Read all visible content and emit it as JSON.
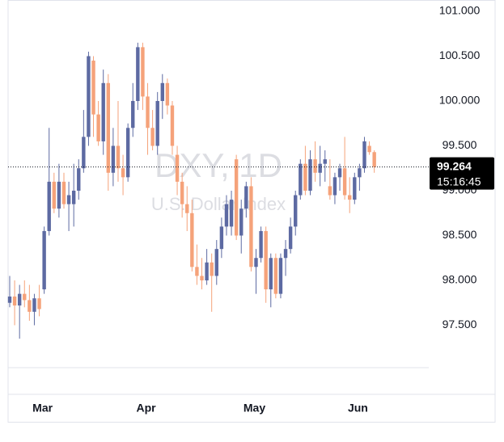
{
  "chart_data": {
    "type": "candlestick",
    "title": "DXY, 1D",
    "subtitle": "U.S. Dollar Index",
    "categories": [
      null,
      null,
      null,
      null,
      null,
      null,
      null,
      "Mar",
      null,
      null,
      null,
      null,
      null,
      null,
      null,
      null,
      null,
      null,
      null,
      null,
      null,
      null,
      null,
      null,
      null,
      null,
      null,
      null,
      "Apr",
      null,
      null,
      null,
      null,
      null,
      null,
      null,
      null,
      null,
      null,
      null,
      null,
      null,
      null,
      null,
      null,
      null,
      null,
      null,
      null,
      null,
      "May",
      null,
      null,
      null,
      null,
      null,
      null,
      null,
      null,
      null,
      null,
      null,
      null,
      null,
      null,
      null,
      null,
      null,
      null,
      null,
      null,
      "Jun",
      null,
      null,
      null
    ],
    "open": [
      97.75,
      97.82,
      97.72,
      97.85,
      97.78,
      97.65,
      97.8,
      97.9,
      98.55,
      99.1,
      98.8,
      99.1,
      98.85,
      98.85,
      99.0,
      99.25,
      99.6,
      100.45,
      99.85,
      99.55,
      100.2,
      99.2,
      99.5,
      99.25,
      99.15,
      99.7,
      100.0,
      100.6,
      100.05,
      99.7,
      99.5,
      100.0,
      100.2,
      99.95,
      99.4,
      99.1,
      98.85,
      98.75,
      98.15,
      98.05,
      98.0,
      98.2,
      98.05,
      98.35,
      98.6,
      98.6,
      99.35,
      98.5,
      98.8,
      99.05,
      98.15,
      98.25,
      98.55,
      97.9,
      98.25,
      97.85,
      98.25,
      98.35,
      98.6,
      98.95,
      99.3,
      99.0,
      99.35,
      99.2,
      99.3,
      99.05,
      98.95,
      99.15,
      99.25,
      98.95,
      98.9,
      99.15,
      99.25,
      99.5,
      99.43
    ],
    "high": [
      98.05,
      98.0,
      97.95,
      98.0,
      97.95,
      97.85,
      97.95,
      98.6,
      99.7,
      99.2,
      99.3,
      99.2,
      99.1,
      99.3,
      99.35,
      99.9,
      100.55,
      100.5,
      100.0,
      100.35,
      100.3,
      99.7,
      100.0,
      99.4,
      99.75,
      100.2,
      100.65,
      100.65,
      100.2,
      99.9,
      100.1,
      100.3,
      100.25,
      100.0,
      99.5,
      99.2,
      99.05,
      98.9,
      98.4,
      98.25,
      98.35,
      98.3,
      98.45,
      98.7,
      98.95,
      99.0,
      99.4,
      98.9,
      99.1,
      99.15,
      98.35,
      98.6,
      98.6,
      98.3,
      98.3,
      98.3,
      98.45,
      98.7,
      99.0,
      99.35,
      99.5,
      99.45,
      99.55,
      99.5,
      99.45,
      99.35,
      99.2,
      99.3,
      99.6,
      99.15,
      99.2,
      99.3,
      99.6,
      99.55,
      99.45
    ],
    "low": [
      97.7,
      97.5,
      97.35,
      97.7,
      97.55,
      97.5,
      97.6,
      97.85,
      98.5,
      98.75,
      98.7,
      98.8,
      98.55,
      98.6,
      98.9,
      99.2,
      99.5,
      99.6,
      99.5,
      99.4,
      99.0,
      99.05,
      99.1,
      98.95,
      99.1,
      99.6,
      99.9,
      99.9,
      99.4,
      99.45,
      99.4,
      99.8,
      99.85,
      99.4,
      98.95,
      98.7,
      98.55,
      98.1,
      97.95,
      97.9,
      97.95,
      97.65,
      97.95,
      98.25,
      98.5,
      98.5,
      98.45,
      98.3,
      98.7,
      98.1,
      97.85,
      98.2,
      97.75,
      97.7,
      97.8,
      97.8,
      98.05,
      98.3,
      98.5,
      98.9,
      98.95,
      98.95,
      99.1,
      99.05,
      99.1,
      98.9,
      98.85,
      99.0,
      98.9,
      98.75,
      98.85,
      99.0,
      99.2,
      99.4,
      99.2
    ],
    "close": [
      97.82,
      97.72,
      97.85,
      97.78,
      97.65,
      97.8,
      97.68,
      98.55,
      99.1,
      98.8,
      99.1,
      98.85,
      98.95,
      99.0,
      99.25,
      99.6,
      100.5,
      99.85,
      99.55,
      100.2,
      99.2,
      99.5,
      99.25,
      99.15,
      99.7,
      100.0,
      100.6,
      100.05,
      99.7,
      99.5,
      100.0,
      100.2,
      99.95,
      99.5,
      99.1,
      98.85,
      98.75,
      98.15,
      98.05,
      98.0,
      98.2,
      98.05,
      98.35,
      98.6,
      98.85,
      98.9,
      98.5,
      98.8,
      99.05,
      98.15,
      98.25,
      98.55,
      97.9,
      98.25,
      97.85,
      98.25,
      98.35,
      98.6,
      98.95,
      99.3,
      99.0,
      99.35,
      99.2,
      99.3,
      99.35,
      98.95,
      99.15,
      99.25,
      98.95,
      98.9,
      99.15,
      99.25,
      99.55,
      99.43,
      99.264
    ],
    "up_color": "#5d6aa2",
    "down_color": "#f5a27a",
    "ylim": [
      97.027,
      101.126
    ],
    "yticks": [
      {
        "value": 97.5,
        "label": "97.500"
      },
      {
        "value": 98,
        "label": "98.000"
      },
      {
        "value": 98.5,
        "label": "98.500"
      },
      {
        "value": 99,
        "label": "99.000"
      },
      {
        "value": 99.5,
        "label": "99.500"
      },
      {
        "value": 100,
        "label": "100.000"
      },
      {
        "value": 100.5,
        "label": "100.500"
      },
      {
        "value": 101,
        "label": "101.000"
      }
    ],
    "last_price": {
      "value": 99.264,
      "label": "99.264"
    },
    "countdown": "15:16:45"
  }
}
